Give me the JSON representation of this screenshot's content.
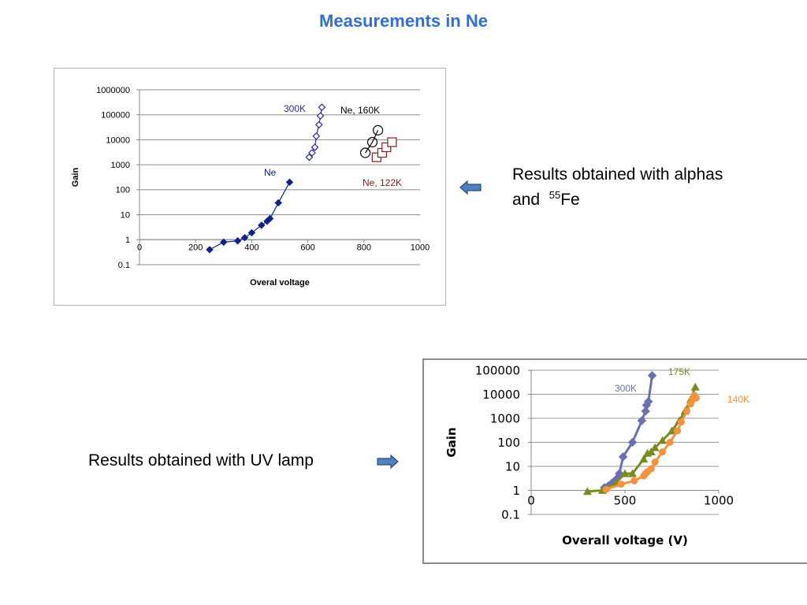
{
  "slide": {
    "title": "Measurements in Ne",
    "caption1_text": "Results obtained with alphas and",
    "caption1_iso_mass": "55",
    "caption1_iso_symbol": "Fe",
    "caption2_text": "Results obtained with UV lamp"
  },
  "colors": {
    "title": "#2f6fd6",
    "arrow_fill": "#4f81bd",
    "ne": "#10228a",
    "ne_300k": "#2a2ab0",
    "ne_160k": "#000000",
    "ne_122k": "#8b1a1a",
    "uv_300k": "#6b6fb3",
    "uv_175k": "#7a8a1e",
    "uv_140k": "#f7923a"
  },
  "icons": {
    "left_arrow": "block-arrow-left-icon",
    "right_arrow": "block-arrow-right-icon"
  },
  "chart_data": [
    {
      "type": "scatter",
      "title": "",
      "xlabel": "Overal voltage",
      "ylabel": "Gain",
      "xlim": [
        0,
        1000
      ],
      "ylim": [
        0.1,
        1000000
      ],
      "y_scale": "log",
      "grid": true,
      "x_ticks": [
        "0",
        "200",
        "400",
        "600",
        "800",
        "1000"
      ],
      "y_ticks": [
        "0.1",
        "1",
        "10",
        "100",
        "1000",
        "10000",
        "100000",
        "1000000"
      ],
      "series": [
        {
          "name": "Ne",
          "marker": "diamond-filled",
          "line": true,
          "x": [
            250,
            300,
            350,
            375,
            400,
            435,
            455,
            465,
            495,
            535
          ],
          "y": [
            0.4,
            0.8,
            0.9,
            1.2,
            1.9,
            3.8,
            5.5,
            7,
            30,
            200
          ]
        },
        {
          "name": "300K",
          "marker": "diamond-open",
          "line": true,
          "x": [
            605,
            615,
            625,
            630,
            640,
            645,
            650
          ],
          "y": [
            2000,
            3000,
            5000,
            14000,
            40000,
            90000,
            200000
          ]
        },
        {
          "name": "Ne, 160K",
          "marker": "circle-open",
          "line": true,
          "x": [
            805,
            830,
            850
          ],
          "y": [
            3000,
            8000,
            24000
          ]
        },
        {
          "name": "Ne, 122K",
          "marker": "square-open",
          "line": false,
          "x": [
            845,
            865,
            880,
            900
          ],
          "y": [
            2000,
            3000,
            5000,
            8000
          ]
        }
      ],
      "annotations": [
        {
          "text": "300K",
          "series": "300K"
        },
        {
          "text": "Ne, 160K",
          "series": "Ne, 160K"
        },
        {
          "text": "Ne",
          "series": "Ne"
        },
        {
          "text": "Ne, 122K",
          "series": "Ne, 122K"
        }
      ]
    },
    {
      "type": "line",
      "title": "",
      "xlabel": "Overall voltage (V)",
      "ylabel": "Gain",
      "xlim": [
        0,
        1000
      ],
      "ylim": [
        0.1,
        100000
      ],
      "y_scale": "log",
      "grid": true,
      "x_ticks": [
        "0",
        "500",
        "1000"
      ],
      "y_ticks": [
        "0.1",
        "1",
        "10",
        "100",
        "1000",
        "10000",
        "100000"
      ],
      "series": [
        {
          "name": "300K",
          "marker": "diamond",
          "line": true,
          "x": [
            390,
            410,
            430,
            455,
            470,
            490,
            540,
            590,
            610,
            615,
            625,
            645
          ],
          "y": [
            1.3,
            1.5,
            2,
            3,
            5,
            25,
            100,
            800,
            2000,
            3500,
            5000,
            60000
          ]
        },
        {
          "name": "175K",
          "marker": "triangle",
          "line": true,
          "x": [
            300,
            380,
            450,
            500,
            540,
            600,
            620,
            640,
            660,
            700,
            750,
            790,
            820,
            850,
            875
          ],
          "y": [
            0.9,
            1,
            2,
            5,
            5,
            20,
            35,
            40,
            60,
            120,
            300,
            800,
            2000,
            6000,
            20000
          ]
        },
        {
          "name": "140K",
          "marker": "circle",
          "line": true,
          "x": [
            400,
            480,
            550,
            600,
            610,
            620,
            640,
            660,
            700,
            740,
            780,
            800,
            830,
            850,
            860,
            870,
            880
          ],
          "y": [
            1.1,
            1.8,
            2.5,
            4,
            5,
            6,
            8,
            15,
            40,
            100,
            300,
            700,
            2000,
            4000,
            6000,
            9000,
            7000
          ]
        }
      ],
      "annotations": [
        {
          "text": "175K",
          "series": "175K"
        },
        {
          "text": "300K",
          "series": "300K"
        },
        {
          "text": "140K",
          "series": "140K"
        }
      ]
    }
  ]
}
